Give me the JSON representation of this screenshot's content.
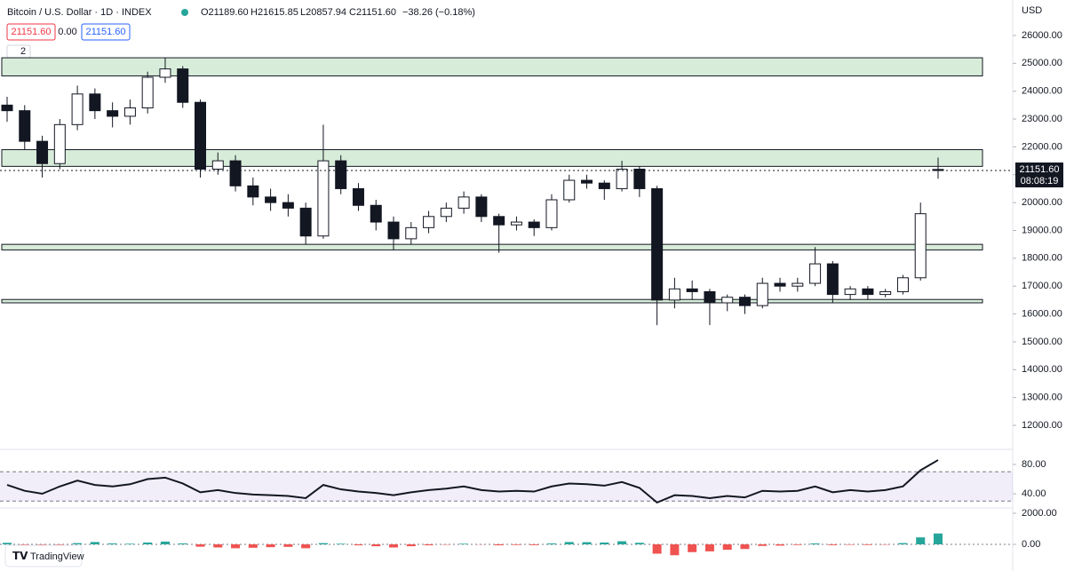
{
  "header": {
    "symbol": "Bitcoin / U.S. Dollar · 1D · INDEX",
    "open": "O21189.60",
    "high": "H21615.85",
    "low": "L20857.94",
    "close": "C21151.60",
    "change": "−38.26 (−0.18%)",
    "bid": "21151.60",
    "spread": "0.00",
    "ask": "21151.60",
    "indicators": "2"
  },
  "currency": "USD",
  "last_price": "21151.60",
  "countdown": "08:08:19",
  "brand": "TradingView",
  "chart_data": {
    "type": "candlestick",
    "ylim": [
      11170,
      27275
    ],
    "yticks": [
      {
        "value": 26000,
        "label": "26000.00"
      },
      {
        "value": 25000,
        "label": "25000.00"
      },
      {
        "value": 24000,
        "label": "24000.00"
      },
      {
        "value": 23000,
        "label": "23000.00"
      },
      {
        "value": 22000,
        "label": "22000.00"
      },
      {
        "value": 21000,
        "label": "21000.00"
      },
      {
        "value": 20000,
        "label": "20000.00"
      },
      {
        "value": 19000,
        "label": "19000.00"
      },
      {
        "value": 18000,
        "label": "18000.00"
      },
      {
        "value": 17000,
        "label": "17000.00"
      },
      {
        "value": 16000,
        "label": "16000.00"
      },
      {
        "value": 15000,
        "label": "15000.00"
      },
      {
        "value": 14000,
        "label": "14000.00"
      },
      {
        "value": 13000,
        "label": "13000.00"
      },
      {
        "value": 12000,
        "label": "12000.00"
      }
    ],
    "zones": [
      [
        24550,
        25200
      ],
      [
        21300,
        21900
      ],
      [
        18300,
        18500
      ],
      [
        16400,
        16520
      ]
    ],
    "candles": [
      [
        23500,
        23800,
        22900,
        23300
      ],
      [
        23300,
        23500,
        21900,
        22200
      ],
      [
        22200,
        22400,
        20900,
        21400
      ],
      [
        21400,
        23000,
        21200,
        22800
      ],
      [
        22800,
        24200,
        22600,
        23900
      ],
      [
        23900,
        24100,
        23000,
        23300
      ],
      [
        23300,
        23600,
        22700,
        23100
      ],
      [
        23100,
        23700,
        22800,
        23400
      ],
      [
        23400,
        24700,
        23200,
        24500
      ],
      [
        24500,
        25200,
        24300,
        24800
      ],
      [
        24800,
        24900,
        23400,
        23600
      ],
      [
        23600,
        23700,
        20900,
        21200
      ],
      [
        21200,
        21800,
        21000,
        21500
      ],
      [
        21500,
        21700,
        20400,
        20600
      ],
      [
        20600,
        20900,
        19900,
        20200
      ],
      [
        20200,
        20500,
        19700,
        20000
      ],
      [
        20000,
        20300,
        19500,
        19800
      ],
      [
        19800,
        20000,
        18500,
        18800
      ],
      [
        18800,
        22800,
        18700,
        21500
      ],
      [
        21500,
        21700,
        20300,
        20500
      ],
      [
        20500,
        20700,
        19700,
        19900
      ],
      [
        19900,
        20100,
        19000,
        19300
      ],
      [
        19300,
        19500,
        18300,
        18700
      ],
      [
        18700,
        19300,
        18500,
        19100
      ],
      [
        19100,
        19700,
        18900,
        19500
      ],
      [
        19500,
        20000,
        19300,
        19800
      ],
      [
        19800,
        20400,
        19600,
        20200
      ],
      [
        20200,
        20300,
        19300,
        19500
      ],
      [
        19500,
        19600,
        18200,
        19200
      ],
      [
        19200,
        19500,
        19000,
        19300
      ],
      [
        19300,
        19400,
        18800,
        19100
      ],
      [
        19100,
        20300,
        19000,
        20100
      ],
      [
        20100,
        21000,
        20000,
        20800
      ],
      [
        20800,
        21000,
        20500,
        20700
      ],
      [
        20700,
        20800,
        20100,
        20500
      ],
      [
        20500,
        21500,
        20400,
        21200
      ],
      [
        21200,
        21300,
        20200,
        20500
      ],
      [
        20500,
        20600,
        15600,
        16500
      ],
      [
        16500,
        17300,
        16200,
        16900
      ],
      [
        16900,
        17200,
        16500,
        16800
      ],
      [
        16800,
        16900,
        15600,
        16400
      ],
      [
        16400,
        16700,
        16100,
        16600
      ],
      [
        16600,
        16700,
        16000,
        16300
      ],
      [
        16300,
        17300,
        16200,
        17100
      ],
      [
        17100,
        17300,
        16800,
        17000
      ],
      [
        17000,
        17300,
        16800,
        17100
      ],
      [
        17100,
        18400,
        17000,
        17800
      ],
      [
        17800,
        17900,
        16400,
        16700
      ],
      [
        16700,
        17000,
        16500,
        16900
      ],
      [
        16900,
        17000,
        16500,
        16700
      ],
      [
        16700,
        16900,
        16600,
        16800
      ],
      [
        16800,
        17400,
        16700,
        17300
      ],
      [
        17300,
        20000,
        17200,
        19600
      ],
      [
        21189.6,
        21615.85,
        20857.94,
        21151.6
      ]
    ],
    "rsi": {
      "ylim": [
        20.6,
        98.2
      ],
      "yticks": [
        {
          "value": 80,
          "label": "80.00"
        },
        {
          "value": 40,
          "label": "40.00"
        }
      ],
      "bands": [
        70,
        30
      ],
      "values": [
        52,
        44,
        40,
        50,
        58,
        52,
        50,
        53,
        60,
        62,
        54,
        42,
        45,
        41,
        39,
        38,
        37,
        34,
        52,
        46,
        43,
        41,
        38,
        42,
        45,
        47,
        50,
        45,
        43,
        44,
        43,
        50,
        54,
        53,
        51,
        56,
        48,
        28,
        38,
        37,
        34,
        37,
        35,
        44,
        43,
        44,
        50,
        42,
        45,
        43,
        45,
        50,
        72,
        86
      ]
    },
    "macd": {
      "ylim": [
        -1086,
        2343
      ],
      "yticks": [
        {
          "value": 2000,
          "label": "2000.00"
        },
        {
          "value": 0,
          "label": "0.00"
        }
      ],
      "values": [
        100,
        -50,
        -200,
        -100,
        80,
        150,
        60,
        40,
        120,
        180,
        60,
        -150,
        -200,
        -250,
        -220,
        -180,
        -160,
        -250,
        80,
        40,
        -60,
        -120,
        -200,
        -120,
        -60,
        -20,
        40,
        -10,
        -60,
        -40,
        -50,
        60,
        150,
        140,
        120,
        200,
        100,
        -600,
        -700,
        -500,
        -450,
        -350,
        -300,
        -100,
        -80,
        -40,
        60,
        -50,
        -30,
        -40,
        -20,
        80,
        450,
        700
      ]
    }
  }
}
